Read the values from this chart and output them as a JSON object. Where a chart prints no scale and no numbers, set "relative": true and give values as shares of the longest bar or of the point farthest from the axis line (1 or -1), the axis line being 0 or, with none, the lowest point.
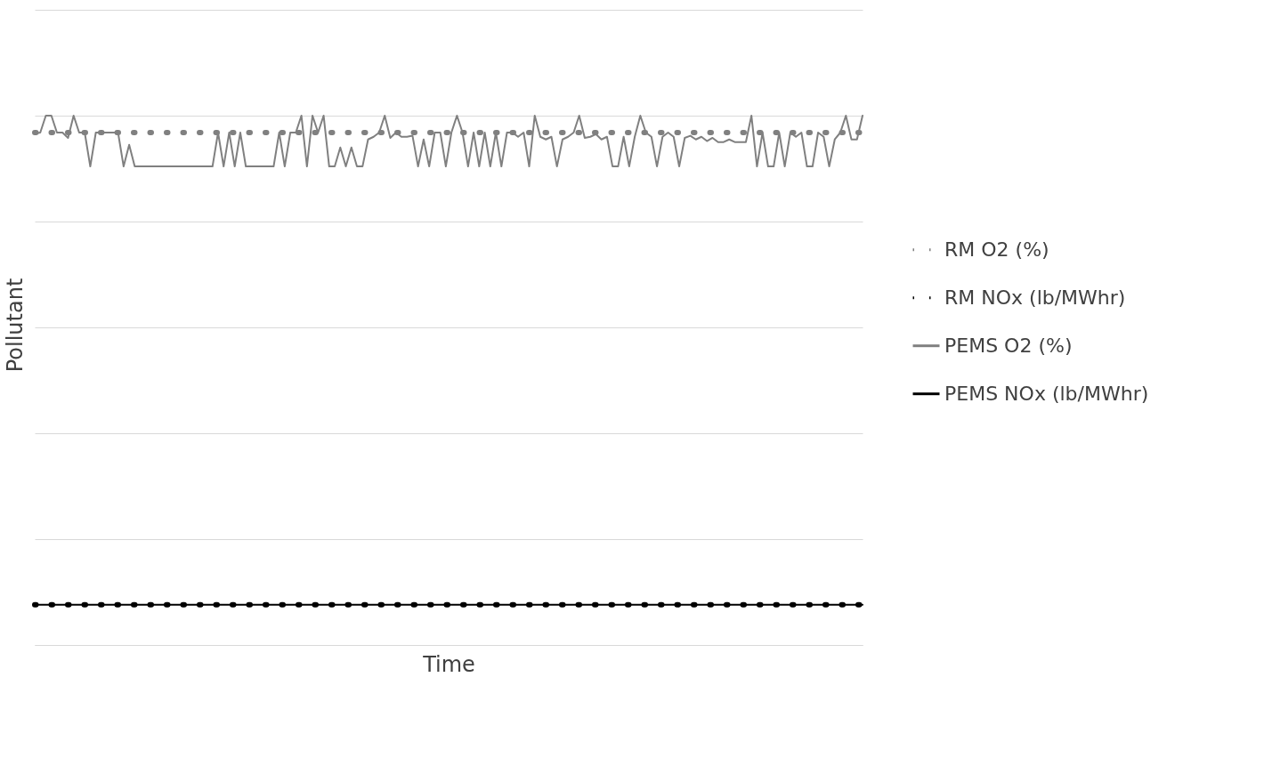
{
  "chart_data": {
    "type": "line",
    "relative": true,
    "xlabel": "Time",
    "ylabel": "Pollutant",
    "grid": "y",
    "legend": "right",
    "categories": [
      null,
      null,
      null,
      null,
      null,
      null,
      null,
      null,
      null,
      null,
      null,
      null,
      null,
      null,
      null,
      null,
      null,
      null,
      null,
      null,
      null,
      null,
      null,
      null,
      null,
      null,
      null,
      null,
      null,
      null,
      null,
      null,
      null,
      null,
      null,
      null,
      null,
      null,
      null,
      null,
      null,
      null,
      null,
      null,
      null,
      null,
      null,
      null,
      null,
      null,
      null,
      null,
      null,
      null,
      null,
      null,
      null,
      null,
      null,
      null,
      null,
      null,
      null,
      null,
      null,
      null,
      null,
      null,
      null,
      null,
      null,
      null,
      null,
      null,
      null,
      null,
      null,
      null,
      null,
      null,
      null,
      null,
      null,
      null,
      null,
      null,
      null,
      null,
      null,
      null,
      null,
      null,
      null,
      null,
      null,
      null,
      null,
      null,
      null,
      null,
      null,
      null,
      null,
      null,
      null,
      null,
      null,
      null,
      null,
      null,
      null,
      null,
      null,
      null,
      null,
      null,
      null,
      null,
      null,
      null,
      null,
      null,
      null,
      null,
      null,
      null,
      null,
      null,
      null,
      null,
      null,
      null,
      null,
      null,
      null,
      null,
      null,
      null,
      null,
      null,
      null,
      null,
      null,
      null,
      null,
      null,
      null,
      null,
      null,
      null
    ],
    "series": [
      {
        "name": "RM O2 (%)",
        "color": "#808080",
        "line_style": "dotted",
        "values": [
          0.968,
          0.968,
          0.968,
          0.968,
          0.968,
          0.968,
          0.968,
          0.968,
          0.968,
          0.968,
          0.968,
          0.968,
          0.968,
          0.968,
          0.968,
          0.968,
          0.968,
          0.968,
          0.968,
          0.968,
          0.968,
          0.968,
          0.968,
          0.968,
          0.968,
          0.968,
          0.968,
          0.968,
          0.968,
          0.968,
          0.968,
          0.968,
          0.968,
          0.968,
          0.968,
          0.968,
          0.968,
          0.968,
          0.968,
          0.968,
          0.968,
          0.968,
          0.968,
          0.968,
          0.968,
          0.968,
          0.968,
          0.968,
          0.968,
          0.968,
          0.968,
          0.968,
          0.968,
          0.968,
          0.968,
          0.968,
          0.968,
          0.968,
          0.968,
          0.968,
          0.968,
          0.968,
          0.968,
          0.968,
          0.968,
          0.968,
          0.968,
          0.968,
          0.968,
          0.968,
          0.968,
          0.968,
          0.968,
          0.968,
          0.968,
          0.968,
          0.968,
          0.968,
          0.968,
          0.968,
          0.968,
          0.968,
          0.968,
          0.968,
          0.968,
          0.968,
          0.968,
          0.968,
          0.968,
          0.968,
          0.968,
          0.968,
          0.968,
          0.968,
          0.968,
          0.968,
          0.968,
          0.968,
          0.968,
          0.968,
          0.968,
          0.968,
          0.968,
          0.968,
          0.968,
          0.968,
          0.968,
          0.968,
          0.968,
          0.968,
          0.968,
          0.968,
          0.968,
          0.968,
          0.968,
          0.968,
          0.968,
          0.968,
          0.968,
          0.968,
          0.968,
          0.968,
          0.968,
          0.968,
          0.968,
          0.968,
          0.968,
          0.968,
          0.968,
          0.968,
          0.968,
          0.968,
          0.968,
          0.968,
          0.968,
          0.968,
          0.968,
          0.968,
          0.968,
          0.968,
          0.968,
          0.968,
          0.968,
          0.968,
          0.968,
          0.968,
          0.968,
          0.968,
          0.968,
          0.968
        ]
      },
      {
        "name": "RM NOx (lb/MWhr)",
        "color": "#000000",
        "line_style": "dotted",
        "values": [
          0.076,
          0.076,
          0.076,
          0.076,
          0.076,
          0.076,
          0.076,
          0.076,
          0.076,
          0.076,
          0.076,
          0.076,
          0.076,
          0.076,
          0.076,
          0.076,
          0.076,
          0.076,
          0.076,
          0.076,
          0.076,
          0.076,
          0.076,
          0.076,
          0.076,
          0.076,
          0.076,
          0.076,
          0.076,
          0.076,
          0.076,
          0.076,
          0.076,
          0.076,
          0.076,
          0.076,
          0.076,
          0.076,
          0.076,
          0.076,
          0.076,
          0.076,
          0.076,
          0.076,
          0.076,
          0.076,
          0.076,
          0.076,
          0.076,
          0.076,
          0.076,
          0.076,
          0.076,
          0.076,
          0.076,
          0.076,
          0.076,
          0.076,
          0.076,
          0.076,
          0.076,
          0.076,
          0.076,
          0.076,
          0.076,
          0.076,
          0.076,
          0.076,
          0.076,
          0.076,
          0.076,
          0.076,
          0.076,
          0.076,
          0.076,
          0.076,
          0.076,
          0.076,
          0.076,
          0.076,
          0.076,
          0.076,
          0.076,
          0.076,
          0.076,
          0.076,
          0.076,
          0.076,
          0.076,
          0.076,
          0.076,
          0.076,
          0.076,
          0.076,
          0.076,
          0.076,
          0.076,
          0.076,
          0.076,
          0.076,
          0.076,
          0.076,
          0.076,
          0.076,
          0.076,
          0.076,
          0.076,
          0.076,
          0.076,
          0.076,
          0.076,
          0.076,
          0.076,
          0.076,
          0.076,
          0.076,
          0.076,
          0.076,
          0.076,
          0.076,
          0.076,
          0.076,
          0.076,
          0.076,
          0.076,
          0.076,
          0.076,
          0.076,
          0.076,
          0.076,
          0.076,
          0.076,
          0.076,
          0.076,
          0.076,
          0.076,
          0.076,
          0.076,
          0.076,
          0.076,
          0.076,
          0.076,
          0.076,
          0.076,
          0.076,
          0.076,
          0.076,
          0.076,
          0.076,
          0.076
        ]
      },
      {
        "name": "PEMS O2 (%)",
        "color": "#808080",
        "line_style": "solid",
        "values": [
          0.966,
          0.968,
          1.0,
          1.0,
          0.968,
          0.968,
          0.958,
          1.0,
          0.968,
          0.968,
          0.904,
          0.968,
          0.968,
          0.968,
          0.968,
          0.968,
          0.904,
          0.945,
          0.904,
          0.904,
          0.904,
          0.904,
          0.904,
          0.904,
          0.904,
          0.904,
          0.904,
          0.904,
          0.904,
          0.904,
          0.904,
          0.904,
          0.904,
          0.968,
          0.904,
          0.968,
          0.904,
          0.968,
          0.904,
          0.904,
          0.904,
          0.904,
          0.904,
          0.904,
          0.968,
          0.904,
          0.968,
          0.968,
          1.0,
          0.904,
          1.0,
          0.968,
          1.0,
          0.904,
          0.904,
          0.94,
          0.904,
          0.94,
          0.904,
          0.904,
          0.955,
          0.96,
          0.968,
          1.0,
          0.958,
          0.968,
          0.96,
          0.96,
          0.962,
          0.904,
          0.955,
          0.904,
          0.968,
          0.968,
          0.904,
          0.968,
          1.0,
          0.968,
          0.904,
          0.968,
          0.904,
          0.968,
          0.904,
          0.968,
          0.904,
          0.968,
          0.968,
          0.96,
          0.968,
          0.904,
          1.0,
          0.96,
          0.955,
          0.96,
          0.904,
          0.955,
          0.96,
          0.968,
          1.0,
          0.958,
          0.96,
          0.965,
          0.955,
          0.96,
          0.904,
          0.904,
          0.96,
          0.904,
          0.96,
          1.0,
          0.968,
          0.96,
          0.904,
          0.96,
          0.968,
          0.96,
          0.904,
          0.958,
          0.962,
          0.955,
          0.96,
          0.952,
          0.958,
          0.95,
          0.95,
          0.955,
          0.95,
          0.95,
          0.95,
          1.0,
          0.904,
          0.968,
          0.904,
          0.904,
          0.968,
          0.904,
          0.968,
          0.96,
          0.968,
          0.904,
          0.904,
          0.968,
          0.96,
          0.904,
          0.955,
          0.968,
          1.0,
          0.955,
          0.955,
          1.0
        ]
      },
      {
        "name": "PEMS NOx (lb/MWhr)",
        "color": "#000000",
        "line_style": "solid",
        "values": [
          0.076,
          0.076,
          0.076,
          0.076,
          0.076,
          0.076,
          0.076,
          0.076,
          0.076,
          0.076,
          0.076,
          0.076,
          0.076,
          0.076,
          0.076,
          0.076,
          0.076,
          0.076,
          0.076,
          0.076,
          0.076,
          0.076,
          0.076,
          0.076,
          0.076,
          0.076,
          0.076,
          0.076,
          0.076,
          0.076,
          0.076,
          0.076,
          0.076,
          0.076,
          0.076,
          0.076,
          0.076,
          0.076,
          0.076,
          0.076,
          0.076,
          0.076,
          0.076,
          0.076,
          0.076,
          0.076,
          0.076,
          0.076,
          0.076,
          0.076,
          0.076,
          0.076,
          0.076,
          0.076,
          0.076,
          0.076,
          0.076,
          0.076,
          0.076,
          0.076,
          0.076,
          0.076,
          0.076,
          0.076,
          0.076,
          0.076,
          0.076,
          0.076,
          0.076,
          0.076,
          0.076,
          0.076,
          0.076,
          0.076,
          0.076,
          0.076,
          0.076,
          0.076,
          0.076,
          0.076,
          0.076,
          0.076,
          0.076,
          0.076,
          0.076,
          0.076,
          0.076,
          0.076,
          0.076,
          0.076,
          0.076,
          0.076,
          0.076,
          0.076,
          0.076,
          0.076,
          0.076,
          0.076,
          0.076,
          0.076,
          0.076,
          0.076,
          0.076,
          0.076,
          0.076,
          0.076,
          0.076,
          0.076,
          0.076,
          0.076,
          0.076,
          0.076,
          0.076,
          0.076,
          0.076,
          0.076,
          0.076,
          0.076,
          0.076,
          0.076,
          0.076,
          0.076,
          0.076,
          0.076,
          0.076,
          0.076,
          0.076,
          0.076,
          0.076,
          0.076,
          0.076,
          0.076,
          0.076,
          0.076,
          0.076,
          0.076,
          0.076,
          0.076,
          0.076,
          0.076,
          0.076,
          0.076,
          0.076,
          0.076,
          0.076,
          0.076,
          0.076,
          0.076,
          0.076,
          0.076
        ]
      }
    ]
  }
}
